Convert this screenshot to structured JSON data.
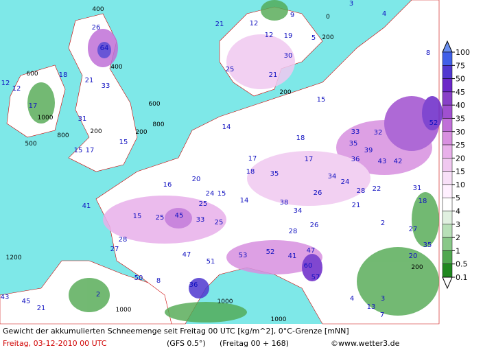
{
  "caption": {
    "line1": "Gewicht der akkumulierten Schneemenge seit Freitag 00 UTC [kg/m^2], 0°C-Grenze [mNN]",
    "date": "Freitag, 03-12-2010 00 UTC",
    "model": "(GFS 0.5°)",
    "run": "(Freitag 00 + 168)",
    "source": "©www.wetter3.de"
  },
  "colorbar": {
    "levels": [
      100,
      75,
      50,
      45,
      40,
      35,
      30,
      25,
      20,
      15,
      10,
      5,
      4,
      3,
      2,
      1,
      0.5,
      0.1
    ],
    "colors": [
      "#6a8ff0",
      "#4060e8",
      "#5038d0",
      "#6a28c8",
      "#8840c8",
      "#a050d0",
      "#c070d8",
      "#d890e0",
      "#e8b0ea",
      "#f0c8f0",
      "#f8e0f8",
      "#fff0ff",
      "#ffffff",
      "#e0f0e0",
      "#b8e0b8",
      "#88c888",
      "#50a850",
      "#208820",
      "#ffffff"
    ]
  },
  "map": {
    "snow_labels": [
      "26",
      "64",
      "18",
      "33",
      "21",
      "17",
      "31",
      "15",
      "17",
      "15",
      "12",
      "12",
      "19",
      "21",
      "30",
      "25",
      "21",
      "15",
      "14",
      "18",
      "17",
      "18",
      "35",
      "17",
      "35",
      "33",
      "39",
      "32",
      "36",
      "43",
      "42",
      "52",
      "34",
      "26",
      "24",
      "22",
      "28",
      "31",
      "18",
      "21",
      "2",
      "27",
      "35",
      "20",
      "41",
      "15",
      "25",
      "45",
      "33",
      "25",
      "24",
      "15",
      "14",
      "20",
      "16",
      "25",
      "38",
      "34",
      "28",
      "26",
      "28",
      "27",
      "53",
      "52",
      "41",
      "47",
      "60",
      "57",
      "51",
      "47",
      "36",
      "50",
      "8",
      "2",
      "45",
      "21",
      "43",
      "13",
      "3",
      "4",
      "7",
      "8",
      "9",
      "4",
      "3",
      "5",
      "12",
      "12"
    ],
    "height_labels": [
      "400",
      "400",
      "600",
      "600",
      "800",
      "800",
      "500",
      "1200",
      "1000",
      "200",
      "200",
      "200",
      "200",
      "0",
      "1000",
      "1000",
      "1000",
      "200"
    ]
  }
}
